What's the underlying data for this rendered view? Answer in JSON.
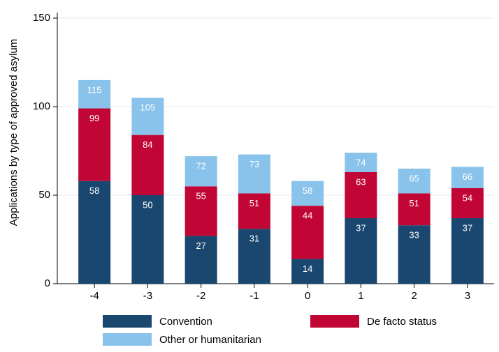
{
  "chart_data": {
    "type": "stacked-bar",
    "y_label": "Applications by type of approved asylum",
    "categories": [
      "-4",
      "-3",
      "-2",
      "-1",
      "0",
      "1",
      "2",
      "3"
    ],
    "series": [
      {
        "name": "Convention",
        "color": "#1a476f",
        "values": [
          58,
          50,
          27,
          31,
          14,
          37,
          33,
          37
        ]
      },
      {
        "name": "De facto status",
        "color": "#c10534",
        "values": [
          41,
          34,
          28,
          20,
          30,
          26,
          18,
          17
        ],
        "value_labels": [
          "99",
          "84",
          "55",
          "51",
          "44",
          "63",
          "51",
          "54"
        ]
      },
      {
        "name": "Other or humanitarian",
        "color": "#89c2ea",
        "values": [
          16,
          21,
          17,
          22,
          14,
          11,
          14,
          12
        ],
        "value_labels": [
          "115",
          "105",
          "72",
          "73",
          "58",
          "74",
          "65",
          "66"
        ]
      }
    ],
    "ylim": [
      0,
      150
    ],
    "yticks": [
      0,
      50,
      100,
      150
    ],
    "grid": true
  }
}
